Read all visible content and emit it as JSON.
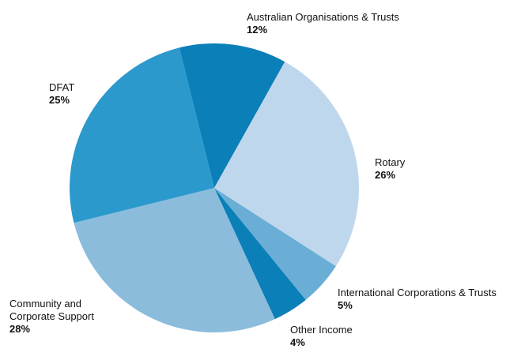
{
  "chart_data": {
    "type": "pie",
    "categories": [
      "Australian Organisations & Trusts",
      "Rotary",
      "International Corporations & Trusts",
      "Other Income",
      "Community and Corporate Support",
      "DFAT"
    ],
    "values": [
      12,
      26,
      5,
      4,
      28,
      25
    ],
    "value_labels": [
      "12%",
      "26%",
      "5%",
      "4%",
      "28%",
      "25%"
    ],
    "colors": [
      "#0a7fb8",
      "#bfd7ec",
      "#6aaed6",
      "#0a7fb8",
      "#8bbcdc",
      "#2b99cb"
    ]
  }
}
